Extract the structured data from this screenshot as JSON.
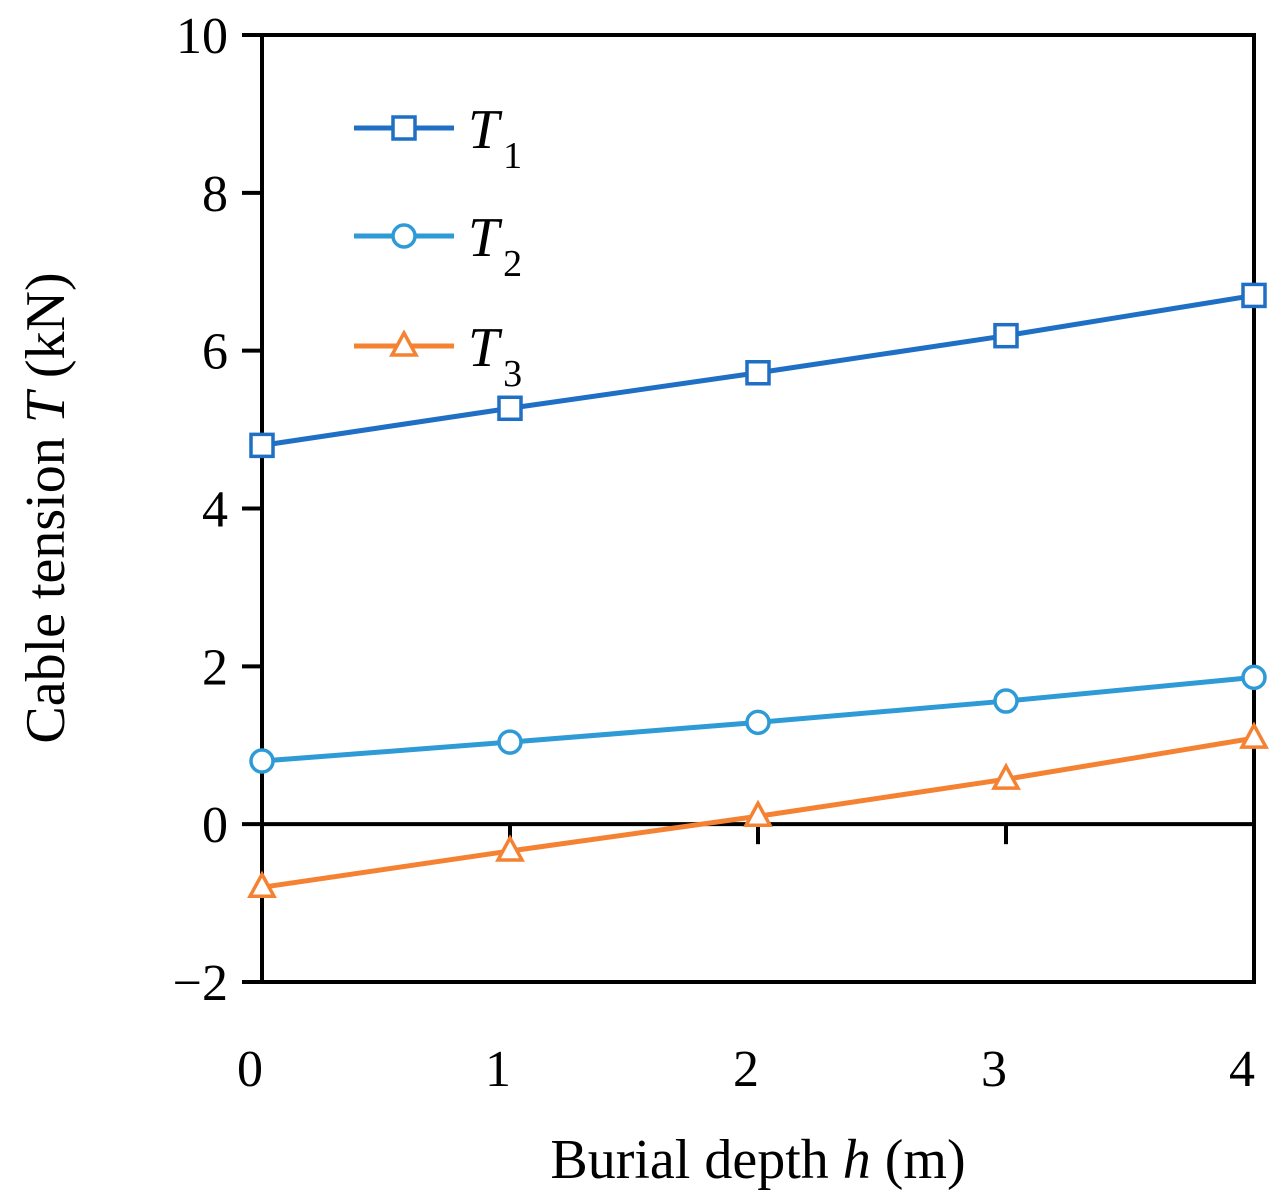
{
  "chart_data": {
    "type": "line",
    "title": "",
    "xlabel_prefix": "Burial depth ",
    "xlabel_var": "h",
    "xlabel_suffix": " (m)",
    "ylabel_prefix": "Cable tension ",
    "ylabel_var": "T",
    "ylabel_suffix": " (kN)",
    "xlim": [
      0,
      4
    ],
    "ylim": [
      -2,
      10
    ],
    "x_ticks": [
      0,
      1,
      2,
      3,
      4
    ],
    "y_ticks": [
      -2,
      0,
      2,
      4,
      6,
      8,
      10
    ],
    "x_tick_labels": [
      "0",
      "1",
      "2",
      "3",
      "4"
    ],
    "y_tick_labels": [
      "−2",
      "0",
      "2",
      "4",
      "6",
      "8",
      "10"
    ],
    "grid": false,
    "legend_position": "top-left",
    "x": [
      0,
      1,
      2,
      3,
      4
    ],
    "series": [
      {
        "name": "T",
        "subscript": "1",
        "marker": "square",
        "color": "#1F6FC5",
        "values": [
          4.8,
          5.27,
          5.72,
          6.19,
          6.7
        ]
      },
      {
        "name": "T",
        "subscript": "2",
        "marker": "circle",
        "color": "#2E9AD6",
        "values": [
          0.8,
          1.04,
          1.29,
          1.56,
          1.86
        ]
      },
      {
        "name": "T",
        "subscript": "3",
        "marker": "triangle",
        "color": "#F58232",
        "values": [
          -0.8,
          -0.34,
          0.1,
          0.57,
          1.09
        ]
      }
    ]
  }
}
